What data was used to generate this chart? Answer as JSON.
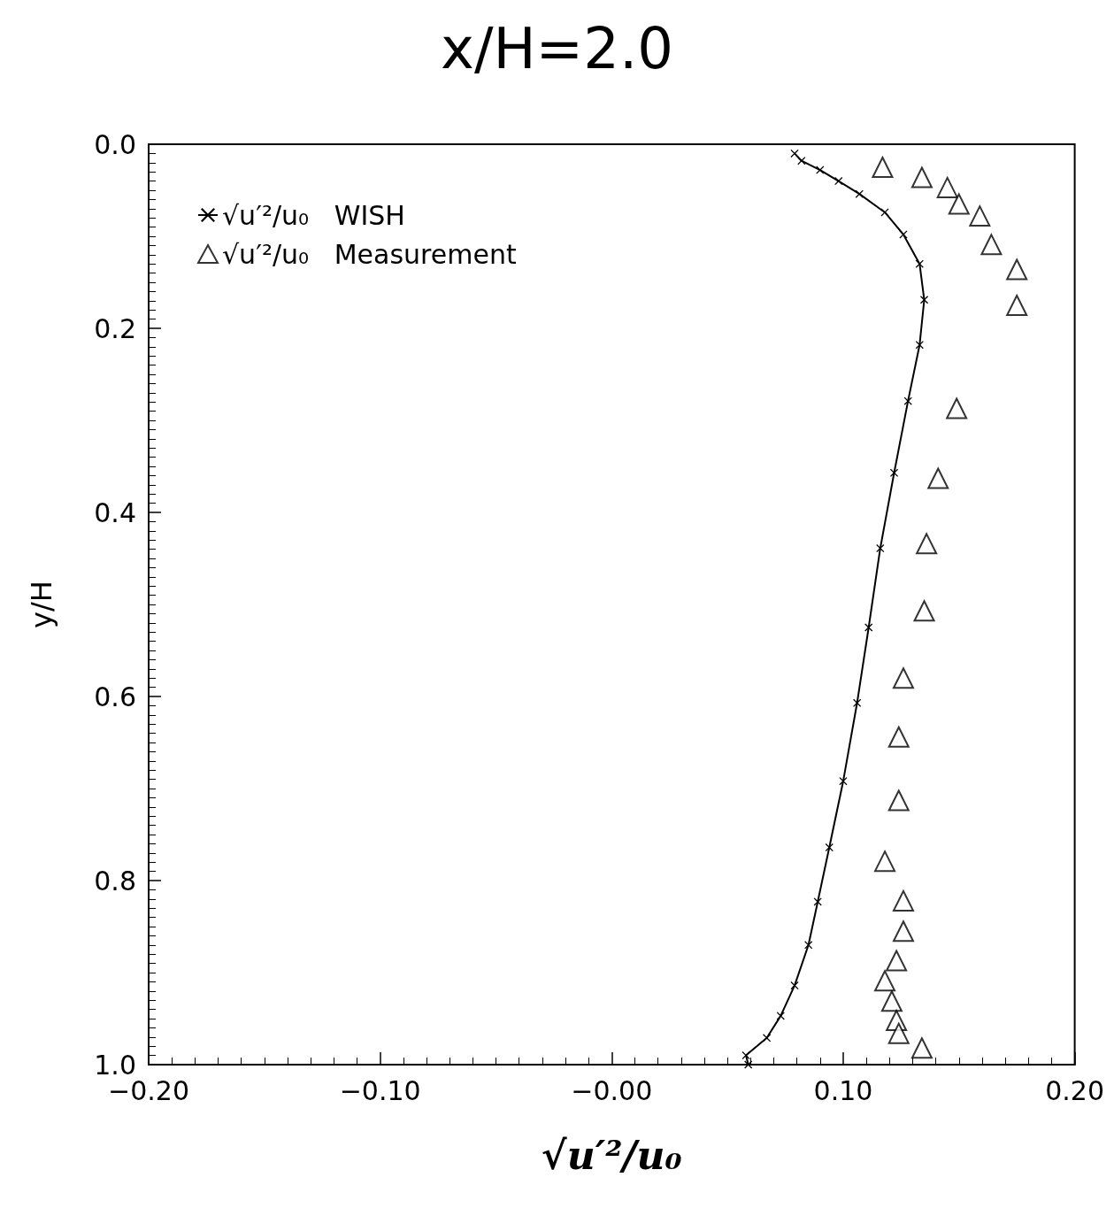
{
  "chart_data": {
    "type": "line",
    "title": "x/H=2.0",
    "xlabel": "√u′²/u₀",
    "ylabel": "y/H",
    "xlim": [
      -0.2,
      0.2
    ],
    "xticks": [
      {
        "value": -0.2,
        "label": "−0.20"
      },
      {
        "value": -0.1,
        "label": "−0.10"
      },
      {
        "value": 0,
        "label": "−0.00"
      },
      {
        "value": 0.1,
        "label": "0.10"
      },
      {
        "value": 0.2,
        "label": "0.20"
      }
    ],
    "ylim": [
      1.0,
      0.0
    ],
    "yticks": [
      {
        "value": 0,
        "label": "0.0"
      },
      {
        "value": 0.2,
        "label": "0.2"
      },
      {
        "value": 0.4,
        "label": "0.4"
      },
      {
        "value": 0.6,
        "label": "0.6"
      },
      {
        "value": 0.8,
        "label": "0.8"
      },
      {
        "value": 1.0,
        "label": "1.0"
      }
    ],
    "grid": false,
    "legend": "top left",
    "series": [
      {
        "name": "√u′²/u₀   WISH",
        "color": "#000000",
        "marker": "cross",
        "line_style": "solid",
        "x": [
          0.079,
          0.082,
          0.09,
          0.098,
          0.107,
          0.118,
          0.126,
          0.133,
          0.135,
          0.133,
          0.128,
          0.122,
          0.116,
          0.111,
          0.106,
          0.1,
          0.094,
          0.089,
          0.085,
          0.079,
          0.073,
          0.067,
          0.058,
          0.059
        ],
        "values": [
          0.01,
          0.018,
          0.028,
          0.04,
          0.054,
          0.074,
          0.098,
          0.13,
          0.169,
          0.218,
          0.279,
          0.357,
          0.439,
          0.525,
          0.607,
          0.692,
          0.764,
          0.823,
          0.87,
          0.914,
          0.947,
          0.971,
          0.99,
          1.0
        ]
      },
      {
        "name": "√u′²/u₀   Measurement",
        "type": "scatter",
        "color": "#000000",
        "marker": "triangle",
        "x": [
          0.117,
          0.134,
          0.145,
          0.15,
          0.159,
          0.164,
          0.175,
          0.175,
          0.149,
          0.141,
          0.136,
          0.135,
          0.126,
          0.124,
          0.124,
          0.118,
          0.126,
          0.126,
          0.123,
          0.118,
          0.121,
          0.123,
          0.124,
          0.134
        ],
        "values": [
          0.025,
          0.036,
          0.047,
          0.065,
          0.078,
          0.109,
          0.136,
          0.175,
          0.287,
          0.363,
          0.434,
          0.507,
          0.58,
          0.644,
          0.713,
          0.779,
          0.822,
          0.855,
          0.887,
          0.909,
          0.931,
          0.952,
          0.966,
          0.982
        ]
      }
    ]
  }
}
